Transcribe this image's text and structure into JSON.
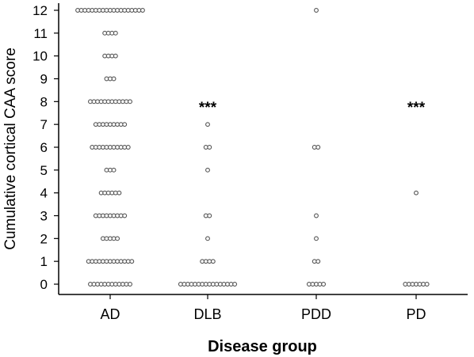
{
  "chart_data": {
    "type": "scatter",
    "xlabel": "Disease group",
    "ylabel": "Cumulative cortical CAA score",
    "categories": [
      "AD",
      "DLB",
      "PDD",
      "PD"
    ],
    "ylim": [
      0,
      12
    ],
    "yticks": [
      "0",
      "1",
      "2",
      "3",
      "4",
      "5",
      "6",
      "7",
      "8",
      "9",
      "10",
      "11",
      "12"
    ],
    "grid": false,
    "legend": "none",
    "point_color": "#555555",
    "significance": [
      {
        "category": "DLB",
        "label": "***"
      },
      {
        "category": "PD",
        "label": "***"
      }
    ],
    "series": [
      {
        "category": "AD",
        "points": [
          {
            "y": 0,
            "count": 12
          },
          {
            "y": 1,
            "count": 13
          },
          {
            "y": 2,
            "count": 5
          },
          {
            "y": 3,
            "count": 9
          },
          {
            "y": 4,
            "count": 6
          },
          {
            "y": 5,
            "count": 3
          },
          {
            "y": 6,
            "count": 11
          },
          {
            "y": 7,
            "count": 9
          },
          {
            "y": 8,
            "count": 12
          },
          {
            "y": 9,
            "count": 3
          },
          {
            "y": 10,
            "count": 4
          },
          {
            "y": 11,
            "count": 4
          },
          {
            "y": 12,
            "count": 19
          }
        ]
      },
      {
        "category": "DLB",
        "points": [
          {
            "y": 0,
            "count": 16
          },
          {
            "y": 1,
            "count": 4
          },
          {
            "y": 2,
            "count": 1
          },
          {
            "y": 3,
            "count": 2
          },
          {
            "y": 5,
            "count": 1
          },
          {
            "y": 6,
            "count": 2
          },
          {
            "y": 7,
            "count": 1
          }
        ]
      },
      {
        "category": "PDD",
        "points": [
          {
            "y": 0,
            "count": 5
          },
          {
            "y": 1,
            "count": 2
          },
          {
            "y": 2,
            "count": 1
          },
          {
            "y": 3,
            "count": 1
          },
          {
            "y": 6,
            "count": 2
          },
          {
            "y": 12,
            "count": 1
          }
        ]
      },
      {
        "category": "PD",
        "points": [
          {
            "y": 0,
            "count": 7
          },
          {
            "y": 4,
            "count": 1
          }
        ]
      }
    ]
  }
}
